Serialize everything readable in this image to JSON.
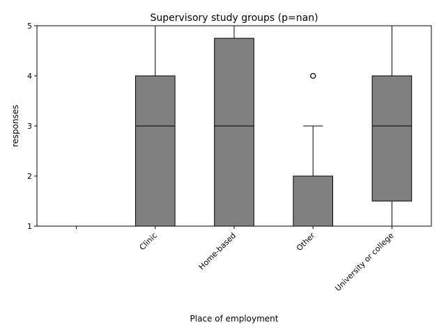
{
  "chart_data": {
    "type": "box",
    "title": "Supervisory study groups (p=nan)",
    "xlabel": "Place of employment",
    "ylabel": "responses",
    "ylim": [
      1,
      5
    ],
    "yticks": [
      1,
      2,
      3,
      4,
      5
    ],
    "grid": false,
    "box_color": "#808080",
    "edge_color": "#000000",
    "categories": [
      "",
      "Clinic",
      "Home-based",
      "Other",
      "University or college"
    ],
    "boxes": [
      null,
      {
        "whisker_low": 1,
        "q1": 1,
        "median": 3,
        "q3": 4,
        "whisker_high": 5,
        "outliers": []
      },
      {
        "whisker_low": 1,
        "q1": 1,
        "median": 3,
        "q3": 4.75,
        "whisker_high": 5,
        "outliers": []
      },
      {
        "whisker_low": 1,
        "q1": 1,
        "median": 1,
        "q3": 2,
        "whisker_high": 3,
        "outliers": [
          4
        ]
      },
      {
        "whisker_low": 1,
        "q1": 1.5,
        "median": 3,
        "q3": 4,
        "whisker_high": 5,
        "outliers": []
      }
    ]
  }
}
